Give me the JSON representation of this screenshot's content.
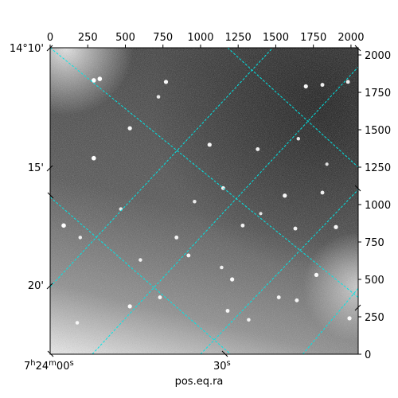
{
  "chart_data": {
    "type": "heatmap",
    "title": "",
    "xlabel": "pos.eq.ra",
    "ylabel": "",
    "pixel_x_axis": {
      "range": [
        0,
        2048
      ],
      "ticks": [
        0,
        250,
        500,
        750,
        1000,
        1250,
        1500,
        1750,
        2000
      ]
    },
    "pixel_y_axis": {
      "range": [
        0,
        2048
      ],
      "ticks": [
        0,
        250,
        500,
        750,
        1000,
        1250,
        1500,
        1750,
        2000
      ]
    },
    "dec_ticks": [
      "14°10'",
      "15'",
      "20'"
    ],
    "ra_ticks": [
      "7h24m00s",
      "30s"
    ],
    "ra_tick_parts": [
      {
        "h": "7",
        "hs": "h",
        "m": "24",
        "ms": "m",
        "s": "00",
        "ss": "s"
      },
      {
        "s": "30",
        "ss": "s"
      }
    ],
    "grid": true,
    "grid_color": "#00e5e5",
    "colormap": "gray",
    "background_gradient": "bright bottom, dark top-right",
    "stars": [
      {
        "x": 290,
        "y": 1830,
        "b": 1.0
      },
      {
        "x": 330,
        "y": 1840,
        "b": 1.0
      },
      {
        "x": 770,
        "y": 1820,
        "b": 0.9
      },
      {
        "x": 1700,
        "y": 1790,
        "b": 0.9
      },
      {
        "x": 1810,
        "y": 1800,
        "b": 0.8
      },
      {
        "x": 1980,
        "y": 1820,
        "b": 0.8
      },
      {
        "x": 720,
        "y": 1720,
        "b": 0.7
      },
      {
        "x": 530,
        "y": 1510,
        "b": 0.9
      },
      {
        "x": 1060,
        "y": 1400,
        "b": 0.9
      },
      {
        "x": 1380,
        "y": 1370,
        "b": 0.8
      },
      {
        "x": 290,
        "y": 1310,
        "b": 1.0
      },
      {
        "x": 1650,
        "y": 1440,
        "b": 0.7
      },
      {
        "x": 1150,
        "y": 1110,
        "b": 0.8
      },
      {
        "x": 1560,
        "y": 1060,
        "b": 0.9
      },
      {
        "x": 1810,
        "y": 1080,
        "b": 0.8
      },
      {
        "x": 90,
        "y": 860,
        "b": 1.0
      },
      {
        "x": 1280,
        "y": 860,
        "b": 0.8
      },
      {
        "x": 1630,
        "y": 840,
        "b": 0.8
      },
      {
        "x": 1900,
        "y": 850,
        "b": 0.9
      },
      {
        "x": 840,
        "y": 780,
        "b": 0.8
      },
      {
        "x": 920,
        "y": 660,
        "b": 0.8
      },
      {
        "x": 600,
        "y": 630,
        "b": 0.7
      },
      {
        "x": 1140,
        "y": 580,
        "b": 0.7
      },
      {
        "x": 1210,
        "y": 500,
        "b": 0.9
      },
      {
        "x": 1770,
        "y": 530,
        "b": 0.9
      },
      {
        "x": 730,
        "y": 380,
        "b": 0.8
      },
      {
        "x": 530,
        "y": 320,
        "b": 0.9
      },
      {
        "x": 1520,
        "y": 380,
        "b": 0.8
      },
      {
        "x": 1640,
        "y": 360,
        "b": 0.8
      },
      {
        "x": 1180,
        "y": 290,
        "b": 0.8
      },
      {
        "x": 1990,
        "y": 240,
        "b": 0.9
      },
      {
        "x": 180,
        "y": 210,
        "b": 0.7
      },
      {
        "x": 1320,
        "y": 230,
        "b": 0.7
      },
      {
        "x": 960,
        "y": 1020,
        "b": 0.7
      },
      {
        "x": 1400,
        "y": 940,
        "b": 0.6
      },
      {
        "x": 200,
        "y": 780,
        "b": 0.7
      },
      {
        "x": 470,
        "y": 970,
        "b": 0.7
      },
      {
        "x": 1840,
        "y": 1270,
        "b": 0.6
      }
    ]
  }
}
